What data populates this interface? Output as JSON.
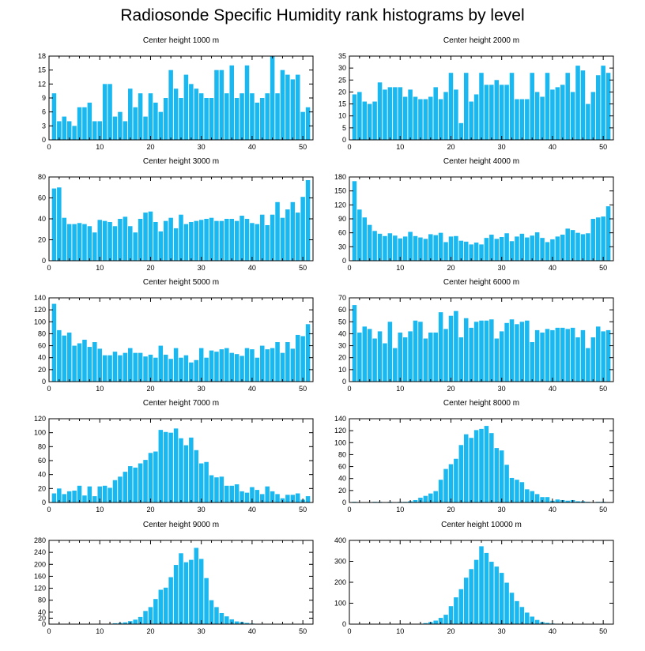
{
  "title": "Radiosonde Specific Humidity rank histograms by level",
  "colors": {
    "bar": "#1ab8f0",
    "axis": "#000000"
  },
  "chart_data": [
    {
      "type": "bar",
      "title": "Center height 1000 m",
      "xlabel": "",
      "ylabel": "",
      "xlim": [
        0,
        52
      ],
      "ylim": [
        0,
        18
      ],
      "xticks": [
        0,
        10,
        20,
        30,
        40,
        50
      ],
      "yticks": [
        0,
        3,
        6,
        9,
        12,
        15,
        18
      ],
      "categories": [
        1,
        2,
        3,
        4,
        5,
        6,
        7,
        8,
        9,
        10,
        11,
        12,
        13,
        14,
        15,
        16,
        17,
        18,
        19,
        20,
        21,
        22,
        23,
        24,
        25,
        26,
        27,
        28,
        29,
        30,
        31,
        32,
        33,
        34,
        35,
        36,
        37,
        38,
        39,
        40,
        41,
        42,
        43,
        44,
        45,
        46,
        47,
        48,
        49,
        50,
        51
      ],
      "values": [
        10,
        4,
        5,
        4,
        3,
        7,
        7,
        8,
        4,
        4,
        12,
        12,
        5,
        6,
        4,
        11,
        7,
        10,
        5,
        10,
        8,
        6,
        9,
        15,
        11,
        9,
        14,
        12,
        11,
        10,
        9,
        9,
        15,
        15,
        10,
        16,
        9,
        10,
        16,
        10,
        8,
        9,
        10,
        18,
        10,
        15,
        14,
        13,
        14,
        6,
        7
      ]
    },
    {
      "type": "bar",
      "title": "Center height 2000 m",
      "xlabel": "",
      "ylabel": "",
      "xlim": [
        0,
        52
      ],
      "ylim": [
        0,
        35
      ],
      "xticks": [
        0,
        10,
        20,
        30,
        40,
        50
      ],
      "yticks": [
        0,
        5,
        10,
        15,
        20,
        25,
        30,
        35
      ],
      "categories": [
        1,
        2,
        3,
        4,
        5,
        6,
        7,
        8,
        9,
        10,
        11,
        12,
        13,
        14,
        15,
        16,
        17,
        18,
        19,
        20,
        21,
        22,
        23,
        24,
        25,
        26,
        27,
        28,
        29,
        30,
        31,
        32,
        33,
        34,
        35,
        36,
        37,
        38,
        39,
        40,
        41,
        42,
        43,
        44,
        45,
        46,
        47,
        48,
        49,
        50,
        51
      ],
      "values": [
        19,
        20,
        16,
        15,
        16,
        24,
        21,
        22,
        22,
        22,
        18,
        21,
        18,
        17,
        17,
        18,
        22,
        17,
        20,
        28,
        21,
        7,
        28,
        16,
        19,
        28,
        23,
        23,
        25,
        23,
        23,
        28,
        17,
        17,
        17,
        28,
        20,
        18,
        28,
        21,
        22,
        23,
        28,
        20,
        31,
        29,
        15,
        20,
        27,
        31,
        28
      ]
    },
    {
      "type": "bar",
      "title": "Center height 3000 m",
      "xlabel": "",
      "ylabel": "",
      "xlim": [
        0,
        52
      ],
      "ylim": [
        0,
        80
      ],
      "xticks": [
        0,
        10,
        20,
        30,
        40,
        50
      ],
      "yticks": [
        0,
        20,
        40,
        60,
        80
      ],
      "categories": [
        1,
        2,
        3,
        4,
        5,
        6,
        7,
        8,
        9,
        10,
        11,
        12,
        13,
        14,
        15,
        16,
        17,
        18,
        19,
        20,
        21,
        22,
        23,
        24,
        25,
        26,
        27,
        28,
        29,
        30,
        31,
        32,
        33,
        34,
        35,
        36,
        37,
        38,
        39,
        40,
        41,
        42,
        43,
        44,
        45,
        46,
        47,
        48,
        49,
        50,
        51
      ],
      "values": [
        69,
        70,
        41,
        35,
        35,
        36,
        35,
        33,
        27,
        39,
        38,
        37,
        33,
        40,
        42,
        33,
        27,
        40,
        46,
        47,
        37,
        28,
        38,
        41,
        31,
        44,
        35,
        37,
        38,
        39,
        40,
        41,
        38,
        38,
        40,
        40,
        38,
        43,
        40,
        36,
        35,
        44,
        34,
        44,
        56,
        41,
        49,
        56,
        46,
        61,
        77
      ]
    },
    {
      "type": "bar",
      "title": "Center height 4000 m",
      "xlabel": "",
      "ylabel": "",
      "xlim": [
        0,
        52
      ],
      "ylim": [
        0,
        180
      ],
      "xticks": [
        0,
        10,
        20,
        30,
        40,
        50
      ],
      "yticks": [
        0,
        30,
        60,
        90,
        120,
        150,
        180
      ],
      "categories": [
        1,
        2,
        3,
        4,
        5,
        6,
        7,
        8,
        9,
        10,
        11,
        12,
        13,
        14,
        15,
        16,
        17,
        18,
        19,
        20,
        21,
        22,
        23,
        24,
        25,
        26,
        27,
        28,
        29,
        30,
        31,
        32,
        33,
        34,
        35,
        36,
        37,
        38,
        39,
        40,
        41,
        42,
        43,
        44,
        45,
        46,
        47,
        48,
        49,
        50,
        51
      ],
      "values": [
        171,
        110,
        93,
        77,
        64,
        58,
        53,
        59,
        54,
        48,
        52,
        62,
        53,
        50,
        47,
        57,
        55,
        60,
        40,
        52,
        53,
        43,
        41,
        35,
        39,
        35,
        49,
        56,
        47,
        51,
        59,
        42,
        52,
        58,
        50,
        54,
        61,
        49,
        40,
        46,
        52,
        56,
        69,
        66,
        60,
        57,
        59,
        90,
        93,
        95,
        117
      ]
    },
    {
      "type": "bar",
      "title": "Center height 5000 m",
      "xlabel": "",
      "ylabel": "",
      "xlim": [
        0,
        52
      ],
      "ylim": [
        0,
        140
      ],
      "xticks": [
        0,
        10,
        20,
        30,
        40,
        50
      ],
      "yticks": [
        0,
        20,
        40,
        60,
        80,
        100,
        120,
        140
      ],
      "categories": [
        1,
        2,
        3,
        4,
        5,
        6,
        7,
        8,
        9,
        10,
        11,
        12,
        13,
        14,
        15,
        16,
        17,
        18,
        19,
        20,
        21,
        22,
        23,
        24,
        25,
        26,
        27,
        28,
        29,
        30,
        31,
        32,
        33,
        34,
        35,
        36,
        37,
        38,
        39,
        40,
        41,
        42,
        43,
        44,
        45,
        46,
        47,
        48,
        49,
        50,
        51
      ],
      "values": [
        130,
        86,
        77,
        82,
        60,
        64,
        70,
        58,
        66,
        55,
        44,
        44,
        50,
        44,
        48,
        56,
        48,
        48,
        42,
        45,
        40,
        60,
        45,
        38,
        56,
        40,
        44,
        32,
        36,
        56,
        40,
        52,
        50,
        54,
        56,
        48,
        46,
        43,
        56,
        54,
        40,
        60,
        54,
        56,
        66,
        48,
        66,
        55,
        78,
        76,
        96
      ]
    },
    {
      "type": "bar",
      "title": "Center height 6000 m",
      "xlabel": "",
      "ylabel": "",
      "xlim": [
        0,
        52
      ],
      "ylim": [
        0,
        70
      ],
      "xticks": [
        0,
        10,
        20,
        30,
        40,
        50
      ],
      "yticks": [
        0,
        10,
        20,
        30,
        40,
        50,
        60,
        70
      ],
      "categories": [
        1,
        2,
        3,
        4,
        5,
        6,
        7,
        8,
        9,
        10,
        11,
        12,
        13,
        14,
        15,
        16,
        17,
        18,
        19,
        20,
        21,
        22,
        23,
        24,
        25,
        26,
        27,
        28,
        29,
        30,
        31,
        32,
        33,
        34,
        35,
        36,
        37,
        38,
        39,
        40,
        41,
        42,
        43,
        44,
        45,
        46,
        47,
        48,
        49,
        50,
        51
      ],
      "values": [
        64,
        41,
        46,
        44,
        36,
        42,
        32,
        50,
        28,
        41,
        37,
        42,
        51,
        50,
        36,
        41,
        41,
        58,
        44,
        55,
        59,
        37,
        53,
        45,
        50,
        51,
        51,
        52,
        36,
        42,
        49,
        52,
        48,
        50,
        51,
        33,
        43,
        41,
        44,
        43,
        45,
        45,
        44,
        45,
        37,
        43,
        28,
        37,
        46,
        42,
        43
      ]
    },
    {
      "type": "bar",
      "title": "Center height 7000 m",
      "xlabel": "",
      "ylabel": "",
      "xlim": [
        0,
        52
      ],
      "ylim": [
        0,
        120
      ],
      "xticks": [
        0,
        10,
        20,
        30,
        40,
        50
      ],
      "yticks": [
        0,
        20,
        40,
        60,
        80,
        100,
        120
      ],
      "categories": [
        1,
        2,
        3,
        4,
        5,
        6,
        7,
        8,
        9,
        10,
        11,
        12,
        13,
        14,
        15,
        16,
        17,
        18,
        19,
        20,
        21,
        22,
        23,
        24,
        25,
        26,
        27,
        28,
        29,
        30,
        31,
        32,
        33,
        34,
        35,
        36,
        37,
        38,
        39,
        40,
        41,
        42,
        43,
        44,
        45,
        46,
        47,
        48,
        49,
        50,
        51
      ],
      "values": [
        13,
        20,
        12,
        16,
        17,
        24,
        10,
        23,
        9,
        23,
        24,
        21,
        32,
        37,
        44,
        52,
        50,
        56,
        61,
        71,
        73,
        104,
        101,
        100,
        106,
        92,
        82,
        93,
        75,
        56,
        58,
        39,
        36,
        37,
        24,
        24,
        26,
        16,
        14,
        22,
        18,
        12,
        23,
        16,
        12,
        6,
        11,
        11,
        13,
        4,
        9
      ]
    },
    {
      "type": "bar",
      "title": "Center height 8000 m",
      "xlabel": "",
      "ylabel": "",
      "xlim": [
        0,
        52
      ],
      "ylim": [
        0,
        140
      ],
      "xticks": [
        0,
        10,
        20,
        30,
        40,
        50
      ],
      "yticks": [
        0,
        20,
        40,
        60,
        80,
        100,
        120,
        140
      ],
      "categories": [
        1,
        2,
        3,
        4,
        5,
        6,
        7,
        8,
        9,
        10,
        11,
        12,
        13,
        14,
        15,
        16,
        17,
        18,
        19,
        20,
        21,
        22,
        23,
        24,
        25,
        26,
        27,
        28,
        29,
        30,
        31,
        32,
        33,
        34,
        35,
        36,
        37,
        38,
        39,
        40,
        41,
        42,
        43,
        44,
        45,
        46,
        47,
        48,
        49,
        50,
        51
      ],
      "values": [
        1,
        0,
        0,
        0,
        1,
        1,
        0,
        1,
        0,
        1,
        1,
        2,
        4,
        8,
        11,
        15,
        19,
        38,
        56,
        64,
        73,
        96,
        114,
        108,
        121,
        123,
        128,
        116,
        91,
        87,
        63,
        41,
        38,
        34,
        22,
        19,
        14,
        9,
        9,
        3,
        5,
        4,
        3,
        4,
        2,
        2,
        1,
        0,
        1,
        1,
        0
      ]
    },
    {
      "type": "bar",
      "title": "Center height 9000 m",
      "xlabel": "",
      "ylabel": "",
      "xlim": [
        0,
        52
      ],
      "ylim": [
        0,
        280
      ],
      "xticks": [
        0,
        10,
        20,
        30,
        40,
        50
      ],
      "yticks": [
        0,
        20,
        40,
        80,
        120,
        160,
        200,
        240,
        280
      ],
      "categories": [
        1,
        2,
        3,
        4,
        5,
        6,
        7,
        8,
        9,
        10,
        11,
        12,
        13,
        14,
        15,
        16,
        17,
        18,
        19,
        20,
        21,
        22,
        23,
        24,
        25,
        26,
        27,
        28,
        29,
        30,
        31,
        32,
        33,
        34,
        35,
        36,
        37,
        38,
        39,
        40,
        41,
        42,
        43,
        44,
        45,
        46,
        47,
        48,
        49,
        50,
        51
      ],
      "values": [
        0,
        0,
        0,
        0,
        0,
        0,
        0,
        0,
        0,
        0,
        0,
        1,
        3,
        4,
        6,
        10,
        15,
        24,
        44,
        57,
        84,
        115,
        122,
        157,
        198,
        237,
        207,
        215,
        255,
        218,
        154,
        80,
        57,
        37,
        26,
        16,
        9,
        7,
        4,
        2,
        1,
        1,
        1,
        0,
        0,
        0,
        0,
        0,
        0,
        0,
        0
      ]
    },
    {
      "type": "bar",
      "title": "Center height 10000 m",
      "xlabel": "",
      "ylabel": "",
      "xlim": [
        0,
        52
      ],
      "ylim": [
        0,
        400
      ],
      "xticks": [
        0,
        10,
        20,
        30,
        40,
        50
      ],
      "yticks": [
        0,
        100,
        200,
        300,
        400
      ],
      "categories": [
        1,
        2,
        3,
        4,
        5,
        6,
        7,
        8,
        9,
        10,
        11,
        12,
        13,
        14,
        15,
        16,
        17,
        18,
        19,
        20,
        21,
        22,
        23,
        24,
        25,
        26,
        27,
        28,
        29,
        30,
        31,
        32,
        33,
        34,
        35,
        36,
        37,
        38,
        39,
        40,
        41,
        42,
        43,
        44,
        45,
        46,
        47,
        48,
        49,
        50,
        51
      ],
      "values": [
        0,
        0,
        0,
        0,
        0,
        0,
        0,
        0,
        0,
        0,
        0,
        0,
        1,
        2,
        5,
        10,
        17,
        30,
        45,
        86,
        128,
        167,
        222,
        263,
        307,
        372,
        340,
        298,
        275,
        245,
        198,
        150,
        110,
        82,
        55,
        36,
        20,
        10,
        6,
        3,
        2,
        1,
        1,
        0,
        0,
        0,
        0,
        0,
        0,
        0,
        0
      ]
    }
  ]
}
